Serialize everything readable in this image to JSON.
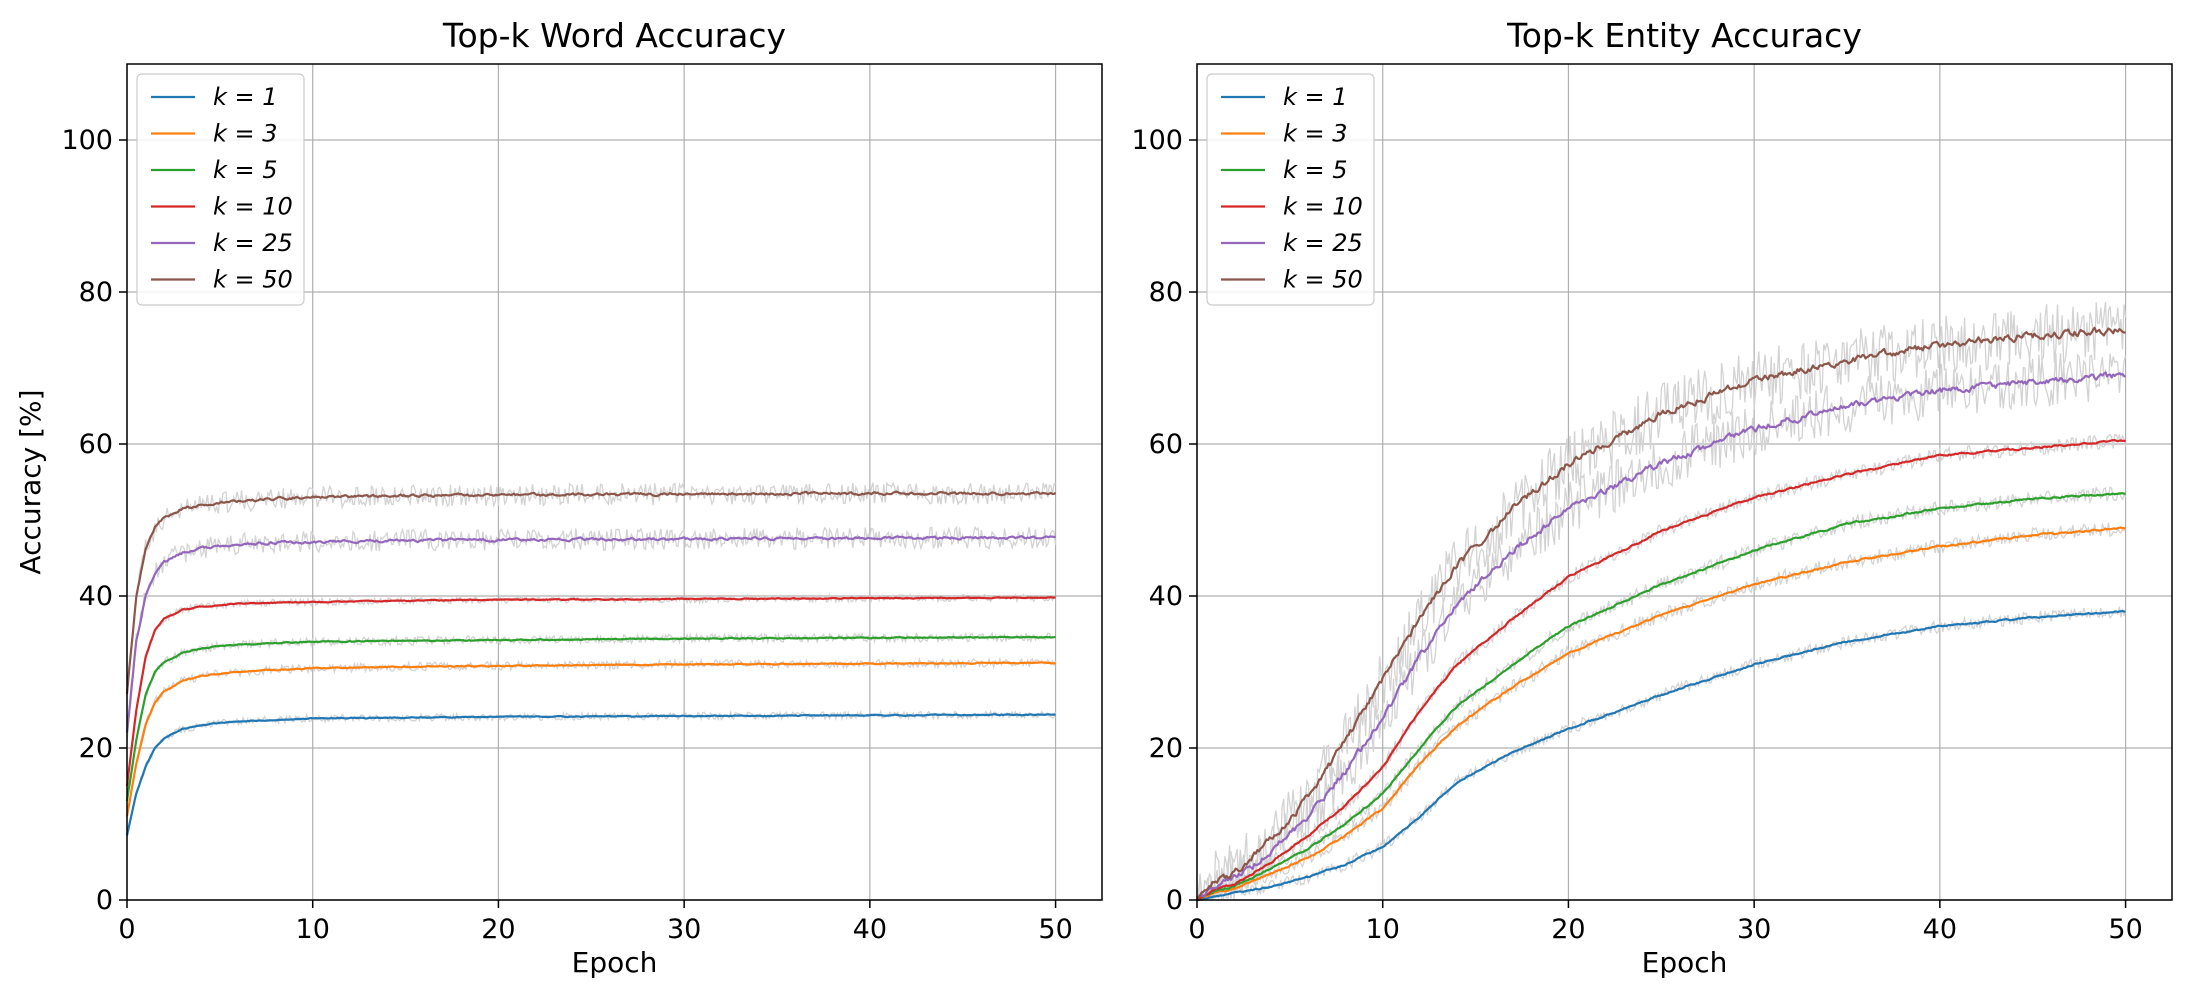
{
  "chart_data": [
    {
      "type": "line",
      "title": "Top-k Word Accuracy",
      "xlabel": "Epoch",
      "ylabel": "Accuracy [%]",
      "xlim": [
        0,
        52.5
      ],
      "ylim": [
        0,
        110
      ],
      "xticks": [
        "0",
        "10",
        "20",
        "30",
        "40",
        "50"
      ],
      "yticks": [
        "0",
        "20",
        "40",
        "60",
        "80",
        "100"
      ],
      "grid": true,
      "legend_position": "top-left",
      "band_color": "#d3d3d3",
      "series": [
        {
          "name": "k = 1",
          "color": "#1f77b4",
          "x": [
            0,
            0.5,
            1,
            1.5,
            2,
            3,
            4,
            5,
            6,
            8,
            10,
            15,
            20,
            30,
            40,
            50
          ],
          "y": [
            8.5,
            14,
            17.5,
            20,
            21.3,
            22.5,
            23,
            23.3,
            23.5,
            23.7,
            23.9,
            24,
            24.1,
            24.2,
            24.3,
            24.4
          ],
          "noise": 0.3
        },
        {
          "name": "k = 3",
          "color": "#ff7f0e",
          "x": [
            0,
            0.5,
            1,
            1.5,
            2,
            3,
            4,
            5,
            6,
            8,
            10,
            15,
            20,
            30,
            40,
            50
          ],
          "y": [
            11,
            18,
            23,
            26,
            27.5,
            28.8,
            29.5,
            29.8,
            30,
            30.3,
            30.5,
            30.7,
            30.8,
            31,
            31.1,
            31.2
          ],
          "noise": 0.35
        },
        {
          "name": "k = 5",
          "color": "#2ca02c",
          "x": [
            0,
            0.5,
            1,
            1.5,
            2,
            3,
            4,
            5,
            6,
            8,
            10,
            15,
            20,
            30,
            40,
            50
          ],
          "y": [
            13,
            21,
            27,
            30,
            31.3,
            32.5,
            33.1,
            33.4,
            33.6,
            33.8,
            34,
            34.1,
            34.2,
            34.4,
            34.5,
            34.6
          ],
          "noise": 0.35
        },
        {
          "name": "k = 10",
          "color": "#d62728",
          "x": [
            0,
            0.5,
            1,
            1.5,
            2,
            3,
            4,
            5,
            6,
            8,
            10,
            15,
            20,
            30,
            40,
            50
          ],
          "y": [
            15,
            25,
            32,
            35.5,
            37,
            38.2,
            38.6,
            38.8,
            39,
            39.1,
            39.2,
            39.4,
            39.5,
            39.6,
            39.7,
            39.8
          ],
          "noise": 0.3
        },
        {
          "name": "k = 25",
          "color": "#9467bd",
          "x": [
            0,
            0.5,
            1,
            1.5,
            2,
            3,
            4,
            5,
            6,
            8,
            10,
            15,
            20,
            30,
            40,
            50
          ],
          "y": [
            22,
            34,
            40,
            43,
            44.5,
            45.7,
            46.3,
            46.6,
            46.8,
            47,
            47.1,
            47.3,
            47.4,
            47.5,
            47.6,
            47.7
          ],
          "noise": 0.9
        },
        {
          "name": "k = 50",
          "color": "#8c564b",
          "x": [
            0,
            0.5,
            1,
            1.5,
            2,
            3,
            4,
            5,
            6,
            8,
            10,
            15,
            20,
            30,
            40,
            50
          ],
          "y": [
            27,
            40,
            46,
            49,
            50.3,
            51.5,
            52,
            52.3,
            52.5,
            52.8,
            53,
            53.2,
            53.3,
            53.4,
            53.5,
            53.5
          ],
          "noise": 0.9
        }
      ]
    },
    {
      "type": "line",
      "title": "Top-k Entity Accuracy",
      "xlabel": "Epoch",
      "ylabel": "",
      "xlim": [
        0,
        52.5
      ],
      "ylim": [
        0,
        110
      ],
      "xticks": [
        "0",
        "10",
        "20",
        "30",
        "40",
        "50"
      ],
      "yticks": [
        "0",
        "20",
        "40",
        "60",
        "80",
        "100"
      ],
      "grid": true,
      "legend_position": "top-left",
      "band_color": "#d3d3d3",
      "series": [
        {
          "name": "k = 1",
          "color": "#1f77b4",
          "x": [
            0,
            1,
            2,
            3,
            4,
            6,
            8,
            10,
            12,
            14,
            17,
            20,
            25,
            30,
            35,
            40,
            45,
            50
          ],
          "y": [
            0,
            0.5,
            1,
            1.3,
            1.8,
            3,
            4.7,
            7,
            11,
            15.5,
            19.5,
            22.5,
            27,
            31,
            34,
            36,
            37.2,
            38
          ],
          "noise": 0.5
        },
        {
          "name": "k = 3",
          "color": "#ff7f0e",
          "x": [
            0,
            1,
            2,
            3,
            4,
            6,
            8,
            10,
            12,
            14,
            17,
            20,
            25,
            30,
            35,
            40,
            45,
            50
          ],
          "y": [
            0,
            1,
            1.5,
            2.5,
            3.5,
            5.5,
            8.5,
            12,
            18,
            23,
            28,
            32.5,
            37.5,
            41.5,
            44.5,
            46.5,
            48,
            49
          ],
          "noise": 0.6
        },
        {
          "name": "k = 5",
          "color": "#2ca02c",
          "x": [
            0,
            1,
            2,
            3,
            4,
            6,
            8,
            10,
            12,
            14,
            17,
            20,
            25,
            30,
            35,
            40,
            45,
            50
          ],
          "y": [
            0,
            1.2,
            1.8,
            3,
            4.2,
            6.8,
            10,
            14,
            20,
            25.5,
            31,
            36,
            41.5,
            46,
            49.5,
            51.5,
            52.8,
            53.5
          ],
          "noise": 0.6
        },
        {
          "name": "k = 10",
          "color": "#d62728",
          "x": [
            0,
            1,
            2,
            3,
            4,
            6,
            8,
            10,
            12,
            14,
            17,
            20,
            25,
            30,
            35,
            40,
            45,
            50
          ],
          "y": [
            0,
            1.5,
            2,
            3.5,
            5,
            8.5,
            12.5,
            17.5,
            25,
            31,
            37,
            42.5,
            48.5,
            53,
            56,
            58.5,
            59.5,
            60.5
          ],
          "noise": 0.6
        },
        {
          "name": "k = 25",
          "color": "#9467bd",
          "x": [
            0,
            1,
            2,
            3,
            4,
            6,
            8,
            10,
            12,
            14,
            17,
            20,
            25,
            30,
            35,
            40,
            45,
            50
          ],
          "y": [
            0,
            2,
            3,
            4.5,
            6.5,
            11,
            17,
            24,
            32,
            39,
            46,
            51.5,
            57.5,
            62,
            65,
            67,
            68.2,
            69
          ],
          "noise": 2.2
        },
        {
          "name": "k = 50",
          "color": "#8c564b",
          "x": [
            0,
            1,
            2,
            3,
            4,
            6,
            8,
            10,
            12,
            14,
            17,
            20,
            25,
            30,
            35,
            40,
            45,
            50
          ],
          "y": [
            0,
            2.5,
            3.5,
            5.5,
            8,
            13.5,
            21,
            29,
            37,
            44,
            51.5,
            57.5,
            64,
            68.5,
            71,
            73,
            74.3,
            75
          ],
          "noise": 2.5
        }
      ]
    }
  ]
}
